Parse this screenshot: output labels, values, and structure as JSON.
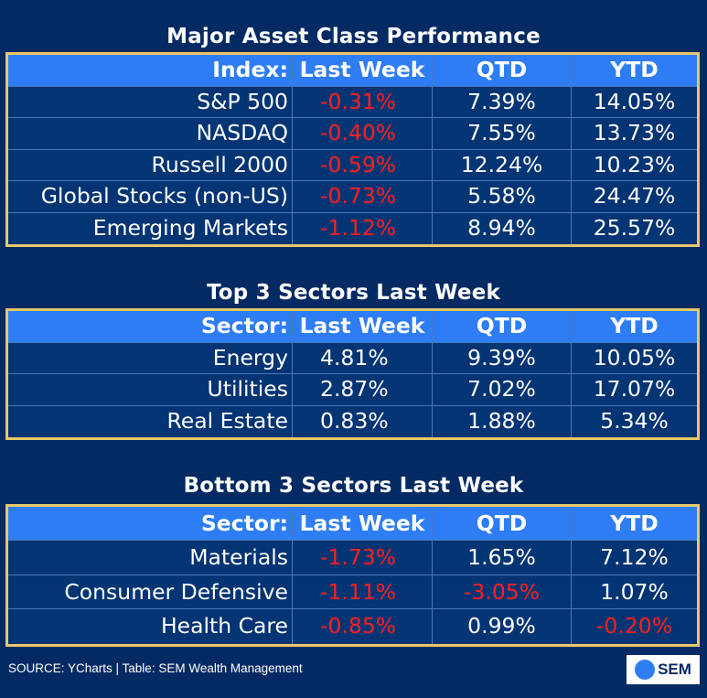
{
  "asset_class": {
    "title": "Major Asset Class Performance",
    "headers": [
      "Index:",
      "Last Week",
      "QTD",
      "YTD"
    ],
    "rows": [
      {
        "name": "S&P 500",
        "last_week": "-0.31%",
        "qtd": "7.39%",
        "ytd": "14.05%"
      },
      {
        "name": "NASDAQ",
        "last_week": "-0.40%",
        "qtd": "7.55%",
        "ytd": "13.73%"
      },
      {
        "name": "Russell 2000",
        "last_week": "-0.59%",
        "qtd": "12.24%",
        "ytd": "10.23%"
      },
      {
        "name": "Global Stocks (non-US)",
        "last_week": "-0.73%",
        "qtd": "5.58%",
        "ytd": "24.47%"
      },
      {
        "name": "Emerging Markets",
        "last_week": "-1.12%",
        "qtd": "8.94%",
        "ytd": "25.57%"
      }
    ]
  },
  "top_sectors": {
    "title": "Top 3 Sectors Last Week",
    "headers": [
      "Sector:",
      "Last Week",
      "QTD",
      "YTD"
    ],
    "rows": [
      {
        "name": "Energy",
        "last_week": "4.81%",
        "qtd": "9.39%",
        "ytd": "10.05%"
      },
      {
        "name": "Utilities",
        "last_week": "2.87%",
        "qtd": "7.02%",
        "ytd": "17.07%"
      },
      {
        "name": "Real Estate",
        "last_week": "0.83%",
        "qtd": "1.88%",
        "ytd": "5.34%"
      }
    ]
  },
  "bottom_sectors": {
    "title": "Bottom 3 Sectors Last Week",
    "headers": [
      "Sector:",
      "Last Week",
      "QTD",
      "YTD"
    ],
    "rows": [
      {
        "name": "Materials",
        "last_week": "-1.73%",
        "qtd": "1.65%",
        "ytd": "7.12%"
      },
      {
        "name": "Consumer Defensive",
        "last_week": "-1.11%",
        "qtd": "-3.05%",
        "ytd": "1.07%"
      },
      {
        "name": "Health Care",
        "last_week": "-0.85%",
        "qtd": "0.99%",
        "ytd": "-0.20%"
      }
    ]
  },
  "footer": {
    "source": "SOURCE: YCharts | Table: SEM Wealth Management",
    "logo_text": "SEM"
  },
  "colors": {
    "background": "#032a63",
    "header_row": "#2e7df5",
    "border": "#e8c86a",
    "negative": "#ff2020"
  }
}
